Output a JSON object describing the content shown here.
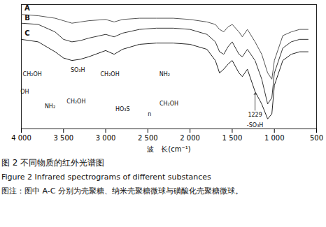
{
  "chart_data": {
    "type": "line",
    "title": "图 2   不同物质的红外光谱图",
    "subtitle": "Figure 2   Infrared spectrograms of different substances",
    "caption": "图注：图中 A-C 分别为壳聚糖、纳米壳聚糖微球与磺酸化壳聚糖微球。",
    "x_label": "波　长(cm⁻¹)",
    "x": [
      4000,
      3800,
      3600,
      3500,
      3400,
      3300,
      3200,
      3000,
      2900,
      2800,
      2600,
      2400,
      2200,
      2000,
      1800,
      1700,
      1650,
      1600,
      1550,
      1500,
      1420,
      1380,
      1320,
      1229,
      1150,
      1080,
      1030,
      1000,
      900,
      800,
      700,
      600
    ],
    "series": [
      {
        "name": "A",
        "color": "#555555",
        "values": [
          92,
          91,
          89,
          87,
          85,
          86,
          87,
          88,
          86,
          88,
          89,
          89,
          89,
          88,
          86,
          84,
          80,
          78,
          82,
          84,
          78,
          74,
          80,
          70,
          60,
          45,
          40,
          55,
          75,
          78,
          80,
          80
        ]
      },
      {
        "name": "B",
        "color": "#333333",
        "values": [
          85,
          84,
          78,
          72,
          70,
          71,
          73,
          76,
          74,
          77,
          80,
          81,
          81,
          80,
          76,
          70,
          62,
          60,
          66,
          70,
          60,
          58,
          64,
          55,
          40,
          20,
          25,
          45,
          65,
          70,
          72,
          72
        ]
      },
      {
        "name": "C",
        "color": "#222222",
        "values": [
          72,
          70,
          62,
          57,
          55,
          56,
          58,
          63,
          60,
          64,
          68,
          69,
          69,
          68,
          64,
          55,
          45,
          48,
          52,
          55,
          45,
          42,
          48,
          30,
          20,
          8,
          12,
          35,
          55,
          60,
          62,
          62
        ]
      }
    ],
    "xlim": [
      4000,
      500
    ],
    "xticks": [
      {
        "value": 4000,
        "label": "4 000"
      },
      {
        "value": 3500,
        "label": "3 500"
      },
      {
        "value": 3000,
        "label": "3 000"
      },
      {
        "value": 2500,
        "label": "2 500"
      },
      {
        "value": 2000,
        "label": "2 000"
      },
      {
        "value": 1500,
        "label": "1 500"
      },
      {
        "value": 1000,
        "label": "1 000"
      },
      500
    ],
    "ylim": [
      0,
      100
    ],
    "tick_labels": "x",
    "grid": false,
    "curve_labels": [
      {
        "text": "A",
        "x": 3930,
        "y": 97
      },
      {
        "text": "B",
        "x": 3930,
        "y": 89
      },
      {
        "text": "C",
        "x": 3930,
        "y": 77
      }
    ],
    "structure_labels": [
      {
        "text": "CH₂OH",
        "x": 3870,
        "y": 44
      },
      {
        "text": "OH",
        "x": 3960,
        "y": 30
      },
      {
        "text": "NH₂",
        "x": 3660,
        "y": 18
      },
      {
        "text": "SO₃H",
        "x": 3330,
        "y": 47
      },
      {
        "text": "CH₂OH",
        "x": 3350,
        "y": 22
      },
      {
        "text": "CH₂OH",
        "x": 2950,
        "y": 44
      },
      {
        "text": "HO₃S",
        "x": 2800,
        "y": 16
      },
      {
        "text": "NH₂",
        "x": 2300,
        "y": 44
      },
      {
        "text": "CH₂OH",
        "x": 2250,
        "y": 20
      },
      {
        "text": "n",
        "x": 2480,
        "y": 12
      }
    ],
    "peak_annotation": {
      "series": "C",
      "x": 1229,
      "texts": [
        "1229",
        "-SO₃H"
      ],
      "y": [
        11,
        3
      ]
    }
  }
}
